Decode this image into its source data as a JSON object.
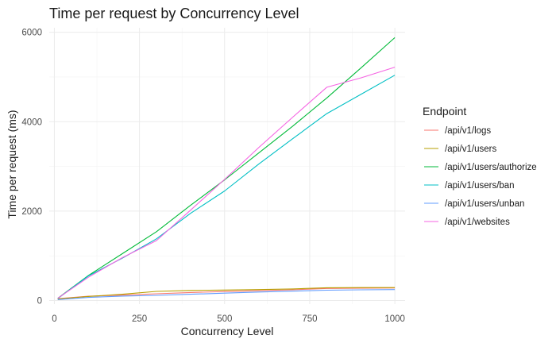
{
  "chart_data": {
    "type": "line",
    "title": "Time per request by Concurrency Level",
    "xlabel": "Concurrency Level",
    "ylabel": "Time per request (ms)",
    "xlim": [
      -15,
      1030
    ],
    "ylim": [
      -80,
      6100
    ],
    "xticks": [
      0,
      250,
      500,
      750,
      1000
    ],
    "yticks": [
      0,
      2000,
      4000,
      6000
    ],
    "grid": true,
    "legend": {
      "title": "Endpoint",
      "position": "right"
    },
    "series": [
      {
        "name": "/api/v1/logs",
        "color": "#F8766D",
        "x": [
          10,
          100,
          200,
          300,
          400,
          500,
          600,
          700,
          800,
          900,
          1000
        ],
        "y": [
          40,
          95,
          120,
          150,
          180,
          200,
          220,
          240,
          270,
          275,
          280
        ]
      },
      {
        "name": "/api/v1/users",
        "color": "#B79F00",
        "x": [
          10,
          100,
          200,
          300,
          400,
          500,
          600,
          700,
          800,
          900,
          1000
        ],
        "y": [
          35,
          90,
          140,
          205,
          225,
          235,
          245,
          260,
          285,
          290,
          290
        ]
      },
      {
        "name": "/api/v1/users/authorize",
        "color": "#00BA38",
        "x": [
          10,
          100,
          200,
          300,
          400,
          500,
          600,
          700,
          800,
          900,
          1000
        ],
        "y": [
          50,
          560,
          1050,
          1540,
          2130,
          2700,
          3300,
          3900,
          4530,
          5200,
          5880
        ]
      },
      {
        "name": "/api/v1/users/ban",
        "color": "#00BFC4",
        "x": [
          10,
          100,
          200,
          300,
          400,
          500,
          600,
          700,
          800,
          900,
          1000
        ],
        "y": [
          45,
          550,
          950,
          1380,
          1950,
          2450,
          3050,
          3620,
          4180,
          4610,
          5040
        ]
      },
      {
        "name": "/api/v1/users/unban",
        "color": "#619CFF",
        "x": [
          10,
          100,
          200,
          300,
          400,
          500,
          600,
          700,
          800,
          900,
          1000
        ],
        "y": [
          20,
          70,
          100,
          115,
          140,
          165,
          190,
          210,
          230,
          240,
          245
        ]
      },
      {
        "name": "/api/v1/websites",
        "color": "#F564E3",
        "x": [
          10,
          100,
          200,
          300,
          400,
          500,
          600,
          700,
          800,
          900,
          1000
        ],
        "y": [
          50,
          520,
          960,
          1340,
          2020,
          2710,
          3420,
          4100,
          4770,
          4980,
          5220
        ]
      }
    ]
  }
}
